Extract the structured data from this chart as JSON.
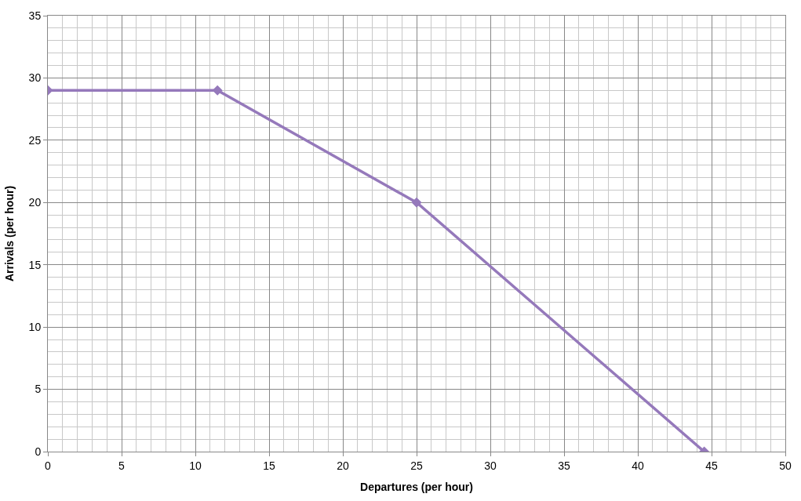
{
  "chart_data": {
    "type": "line",
    "xlabel": "Departures (per hour)",
    "ylabel": "Arrivals (per hour)",
    "x": [
      0,
      11.5,
      25,
      44.5
    ],
    "series": [
      {
        "color": "#9579bb",
        "values": [
          29,
          29,
          20,
          0
        ]
      }
    ],
    "xlim": [
      0,
      50
    ],
    "xticks": [
      0,
      5,
      10,
      15,
      20,
      25,
      30,
      35,
      40,
      45,
      50
    ],
    "ylim": [
      0,
      35
    ],
    "yticks": [
      0,
      5,
      10,
      15,
      20,
      25,
      30,
      35
    ],
    "grid": true,
    "marker": "diamond",
    "line_style": "solid"
  }
}
